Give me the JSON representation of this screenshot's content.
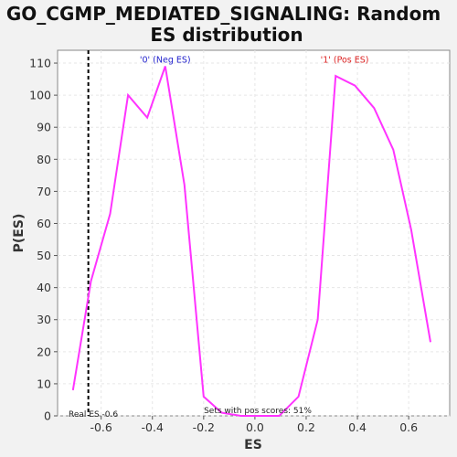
{
  "chart_data": {
    "type": "line",
    "title": "GO_CGMP_MEDIATED_SIGNALING: Random\nES distribution",
    "xlabel": "ES",
    "ylabel": "P(ES)",
    "xlim": [
      -0.77,
      0.76
    ],
    "ylim": [
      0,
      114
    ],
    "x_ticks": [
      -0.6,
      -0.4,
      -0.2,
      0.0,
      0.2,
      0.4,
      0.6
    ],
    "x_tick_labels": [
      "-0.6",
      "-0.4",
      "-0.2",
      "0.0",
      "0.2",
      "0.4",
      "0.6"
    ],
    "y_ticks": [
      0,
      10,
      20,
      30,
      40,
      50,
      60,
      70,
      80,
      90,
      100,
      110
    ],
    "y_tick_labels": [
      "0",
      "10",
      "20",
      "30",
      "40",
      "50",
      "60",
      "70",
      "80",
      "90",
      "100",
      "110"
    ],
    "grid": true,
    "series": [
      {
        "color": "#ff33ff",
        "x": [
          -0.71,
          -0.64,
          -0.565,
          -0.495,
          -0.42,
          -0.35,
          -0.275,
          -0.2,
          -0.13,
          -0.055,
          0.02,
          0.095,
          0.17,
          0.245,
          0.315,
          0.39,
          0.465,
          0.54,
          0.61,
          0.685
        ],
        "y": [
          8,
          42,
          63,
          100,
          93,
          109,
          72,
          6,
          1,
          0,
          0,
          0,
          6,
          30,
          106,
          103,
          96,
          83,
          58,
          23
        ]
      }
    ],
    "real_es": -0.65,
    "real_es_label": "Real ES -0.6",
    "annotations": [
      {
        "text": "'0' (Neg ES)",
        "color": "#2222cc",
        "x": -0.35,
        "y": 111
      },
      {
        "text": "'1' (Pos ES)",
        "color": "#dd2222",
        "x": 0.35,
        "y": 111
      }
    ],
    "footer_text": "Sets with pos scores: 51%",
    "colors": {
      "background": "#f2f2f2",
      "plot_background": "#ffffff",
      "line": "#ff33ff",
      "grid": "#e6e6e6",
      "axis": "#000000",
      "title": "#111111"
    }
  }
}
